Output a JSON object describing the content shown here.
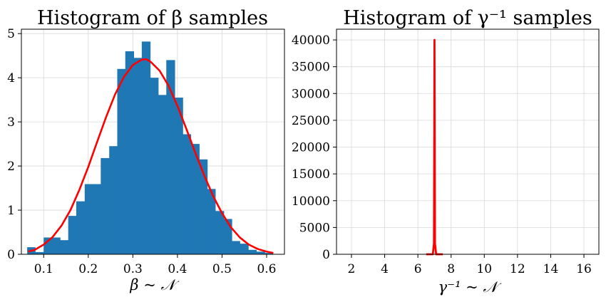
{
  "chart_data": [
    {
      "type": "bar",
      "title": "Histogram of β samples",
      "xlabel": "β ~ 𝒩",
      "ylabel": "",
      "xlim": [
        0.05,
        0.64
      ],
      "ylim": [
        0,
        5.1
      ],
      "xticks": [
        "0.1",
        "0.2",
        "0.3",
        "0.4",
        "0.5",
        "0.6"
      ],
      "yticks": [
        "0",
        "1",
        "2",
        "3",
        "4",
        "5"
      ],
      "grid": true,
      "bar_color": "#1f77b4",
      "curve_color": "#ff0000",
      "bin_edges": [
        0.063,
        0.081,
        0.1,
        0.118,
        0.137,
        0.155,
        0.173,
        0.192,
        0.21,
        0.228,
        0.247,
        0.265,
        0.283,
        0.302,
        0.32,
        0.339,
        0.357,
        0.375,
        0.394,
        0.412,
        0.43,
        0.449,
        0.467,
        0.485,
        0.504,
        0.522,
        0.54,
        0.559,
        0.577,
        0.596,
        0.614
      ],
      "values": [
        0.16,
        0.05,
        0.38,
        0.38,
        0.32,
        0.87,
        1.2,
        1.59,
        1.59,
        2.18,
        2.45,
        4.2,
        4.6,
        4.45,
        4.82,
        4.0,
        3.61,
        4.4,
        3.55,
        2.72,
        2.5,
        2.15,
        1.48,
        0.98,
        0.8,
        0.3,
        0.24,
        0.1,
        0.06,
        0.03
      ],
      "series": [
        {
          "name": "",
          "x": [
            0.065,
            0.08,
            0.1,
            0.12,
            0.14,
            0.16,
            0.18,
            0.2,
            0.22,
            0.24,
            0.26,
            0.28,
            0.3,
            0.32,
            0.33,
            0.34,
            0.36,
            0.38,
            0.4,
            0.42,
            0.44,
            0.46,
            0.48,
            0.5,
            0.52,
            0.54,
            0.56,
            0.58,
            0.6,
            0.615
          ],
          "y": [
            0.06,
            0.1,
            0.22,
            0.39,
            0.65,
            1.0,
            1.46,
            1.98,
            2.55,
            3.11,
            3.62,
            4.02,
            4.29,
            4.41,
            4.42,
            4.36,
            4.16,
            3.82,
            3.36,
            2.84,
            2.3,
            1.79,
            1.32,
            0.93,
            0.61,
            0.38,
            0.22,
            0.12,
            0.06,
            0.03
          ]
        }
      ]
    },
    {
      "type": "line",
      "title": "Histogram of γ⁻¹ samples",
      "xlabel": "γ⁻¹ ~ 𝒩",
      "ylabel": "",
      "xlim": [
        1.1,
        16.9
      ],
      "ylim": [
        0,
        42000
      ],
      "xticks": [
        "2",
        "4",
        "6",
        "8",
        "10",
        "12",
        "14",
        "16"
      ],
      "yticks": [
        "0",
        "5000",
        "10000",
        "15000",
        "20000",
        "25000",
        "30000",
        "35000",
        "40000"
      ],
      "grid": true,
      "curve_color": "#ff0000",
      "series": [
        {
          "name": "",
          "x": [
            6.5,
            6.9,
            6.97,
            7.0,
            7.03,
            7.1,
            7.5
          ],
          "y": [
            0,
            0,
            2000,
            40000,
            2000,
            0,
            0
          ]
        }
      ]
    }
  ]
}
